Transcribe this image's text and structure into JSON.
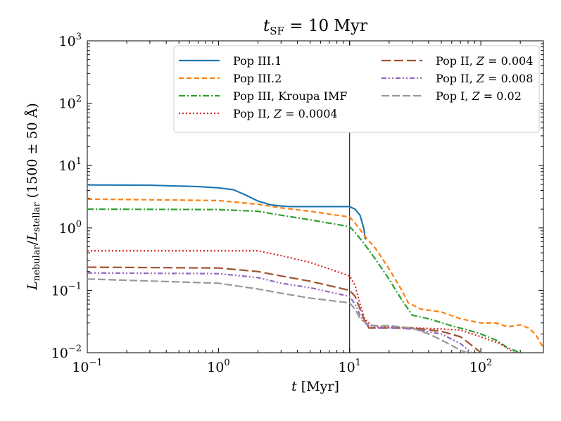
{
  "chart_data": {
    "type": "line",
    "title_main": "t",
    "title_sub": "SF",
    "title_rest": " = 10 Myr",
    "xlabel_main": "t",
    "xlabel_rest": " [Myr]",
    "ylabel_parts": {
      "L1": "L",
      "sub1": "nebular",
      "slash": "/",
      "L2": "L",
      "sub2": "stellar",
      "range": "(1500 ± 50 Å)"
    },
    "xscale": "log",
    "yscale": "log",
    "xlim": [
      0.1,
      300
    ],
    "ylim": [
      0.01,
      1000
    ],
    "vline_x": 10,
    "legend_position": "top-right",
    "x_ticks": [
      {
        "value": 0.1,
        "base": "10",
        "exp": "−1"
      },
      {
        "value": 1,
        "base": "10",
        "exp": "0"
      },
      {
        "value": 10,
        "base": "10",
        "exp": "1"
      },
      {
        "value": 100,
        "base": "10",
        "exp": "2"
      }
    ],
    "y_ticks": [
      {
        "value": 0.01,
        "base": "10",
        "exp": "−2"
      },
      {
        "value": 0.1,
        "base": "10",
        "exp": "−1"
      },
      {
        "value": 1,
        "base": "10",
        "exp": "0"
      },
      {
        "value": 10,
        "base": "10",
        "exp": "1"
      },
      {
        "value": 100,
        "base": "10",
        "exp": "2"
      },
      {
        "value": 1000,
        "base": "10",
        "exp": "3"
      }
    ],
    "series": [
      {
        "name": "Pop III.1",
        "label_main": "Pop III.1",
        "label_z": "",
        "color": "#1f77b4",
        "dash": "",
        "x": [
          0.1,
          0.3,
          0.7,
          1.0,
          1.3,
          1.6,
          2.0,
          2.5,
          3.0,
          3.5,
          5.0,
          8.0,
          10.0,
          11.0,
          12.0,
          12.8,
          13.2
        ],
        "y": [
          4.9,
          4.85,
          4.6,
          4.4,
          4.1,
          3.4,
          2.7,
          2.35,
          2.25,
          2.2,
          2.2,
          2.2,
          2.2,
          2.0,
          1.6,
          1.0,
          0.65
        ]
      },
      {
        "name": "Pop III.2",
        "label_main": "Pop III.2",
        "label_z": "",
        "color": "#ff7f0e",
        "dash": "7,4",
        "x": [
          0.1,
          0.5,
          1.0,
          2.0,
          3.0,
          5.0,
          10.0,
          11.0,
          13.0,
          16.0,
          20.0,
          25.0,
          28.0,
          35.0,
          50.0,
          70.0,
          100.0,
          130.0,
          160.0,
          200.0,
          230.0,
          260.0,
          300.0
        ],
        "y": [
          2.9,
          2.8,
          2.75,
          2.4,
          2.1,
          1.85,
          1.5,
          1.2,
          0.75,
          0.45,
          0.22,
          0.1,
          0.063,
          0.05,
          0.045,
          0.035,
          0.03,
          0.03,
          0.026,
          0.028,
          0.025,
          0.02,
          0.012
        ]
      },
      {
        "name": "Pop III, Kroupa IMF",
        "label_main": "Pop III, Kroupa IMF",
        "label_z": "",
        "color": "#2ca02c",
        "dash": "9,3,2,3",
        "x": [
          0.1,
          0.5,
          1.0,
          2.0,
          3.0,
          5.0,
          10.0,
          11.0,
          13.0,
          16.0,
          20.0,
          25.0,
          30.0,
          40.0,
          60.0,
          80.0,
          100.0,
          130.0,
          160.0,
          200.0
        ],
        "y": [
          2.0,
          1.98,
          1.97,
          1.85,
          1.6,
          1.35,
          1.05,
          0.85,
          0.55,
          0.3,
          0.15,
          0.07,
          0.04,
          0.035,
          0.027,
          0.023,
          0.02,
          0.016,
          0.012,
          0.01
        ]
      },
      {
        "name": "Pop II, Z = 0.0004",
        "label_main": "Pop II, ",
        "label_z": "0.0004",
        "color": "#d62728",
        "dash": "2,3",
        "x": [
          0.1,
          0.5,
          1.0,
          2.0,
          3.0,
          5.0,
          8.0,
          10.0,
          11.0,
          12.0,
          13.0,
          15.0,
          20.0,
          30.0,
          50.0,
          70.0,
          100.0,
          140.0,
          180.0
        ],
        "y": [
          0.43,
          0.43,
          0.43,
          0.43,
          0.36,
          0.28,
          0.2,
          0.17,
          0.12,
          0.06,
          0.035,
          0.026,
          0.026,
          0.025,
          0.024,
          0.023,
          0.018,
          0.014,
          0.01
        ]
      },
      {
        "name": "Pop II, Z = 0.004",
        "label_main": "Pop II, ",
        "label_z": "0.004",
        "color": "#a0522d",
        "dash": "13,5",
        "x": [
          0.1,
          1.0,
          2.0,
          3.0,
          5.0,
          10.0,
          11.0,
          12.0,
          13.0,
          14.0,
          16.0,
          20.0,
          30.0,
          50.0,
          70.0,
          90.0,
          100.0
        ],
        "y": [
          0.235,
          0.228,
          0.2,
          0.17,
          0.14,
          0.1,
          0.08,
          0.05,
          0.033,
          0.025,
          0.025,
          0.025,
          0.025,
          0.022,
          0.018,
          0.012,
          0.01
        ]
      },
      {
        "name": "Pop II, Z = 0.008",
        "label_main": "Pop II, ",
        "label_z": "0.008",
        "color": "#9467bd",
        "dash": "7,3,2,3,2,3",
        "x": [
          0.1,
          1.0,
          2.0,
          3.0,
          5.0,
          10.0,
          11.0,
          12.0,
          13.0,
          15.0,
          20.0,
          30.0,
          50.0,
          70.0,
          85.0
        ],
        "y": [
          0.19,
          0.185,
          0.16,
          0.13,
          0.11,
          0.08,
          0.06,
          0.04,
          0.03,
          0.025,
          0.025,
          0.024,
          0.02,
          0.014,
          0.01
        ]
      },
      {
        "name": "Pop I, Z = 0.02",
        "label_main": "Pop I, ",
        "label_z": "0.02",
        "color": "#999999",
        "dash": "11,4",
        "x": [
          0.1,
          1.0,
          2.0,
          3.0,
          5.0,
          10.0,
          11.0,
          12.0,
          14.0,
          16.0,
          20.0,
          30.0,
          40.0,
          50.0,
          60.0,
          70.0,
          80.0
        ],
        "y": [
          0.152,
          0.13,
          0.105,
          0.09,
          0.075,
          0.063,
          0.05,
          0.035,
          0.028,
          0.027,
          0.027,
          0.025,
          0.02,
          0.016,
          0.013,
          0.011,
          0.0098
        ]
      }
    ]
  }
}
